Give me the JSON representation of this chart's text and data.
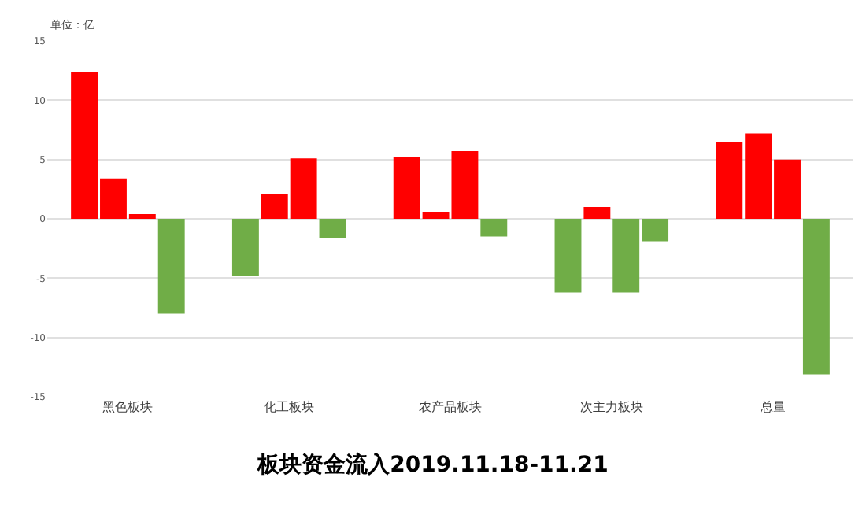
{
  "chart_data": {
    "type": "bar",
    "title": "板块资金流入2019.11.18-11.21",
    "annotations": [
      "单位：亿"
    ],
    "categories": [
      "黑色板块",
      "化工板块",
      "农产品板块",
      "次主力板块",
      "总量"
    ],
    "series": [
      {
        "values": [
          12.4,
          -4.8,
          5.2,
          -6.2,
          6.5
        ],
        "colors": [
          "#ff0000",
          "#70ad47",
          "#ff0000",
          "#70ad47",
          "#ff0000"
        ]
      },
      {
        "values": [
          3.4,
          2.1,
          0.6,
          1.0,
          7.2
        ],
        "colors": [
          "#ff0000",
          "#ff0000",
          "#ff0000",
          "#ff0000",
          "#ff0000"
        ]
      },
      {
        "values": [
          0.4,
          5.1,
          5.7,
          -6.2,
          5.0
        ],
        "colors": [
          "#ff0000",
          "#ff0000",
          "#ff0000",
          "#70ad47",
          "#ff0000"
        ]
      },
      {
        "values": [
          -8.0,
          -1.6,
          -1.5,
          -1.9,
          -13.1
        ],
        "colors": [
          "#70ad47",
          "#70ad47",
          "#70ad47",
          "#70ad47",
          "#70ad47"
        ]
      }
    ],
    "ylim": [
      -15,
      15
    ],
    "yticks": [
      -15,
      -10,
      -5,
      0,
      5,
      10,
      15
    ],
    "grid": "y"
  }
}
